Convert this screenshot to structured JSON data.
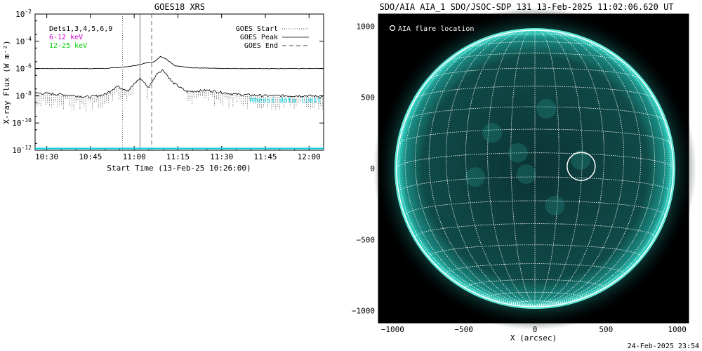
{
  "footer_timestamp": "24-Feb-2025 23:54",
  "colors": {
    "panel_bg": "#ffffff",
    "dets": "#000000",
    "band_6_12": "#cc00cc",
    "band_12_25": "#00cc00",
    "rhessi_line": "#00d4e6",
    "aia_disk": "#0a3a3a",
    "aia_limb": "#1fd6c6",
    "grid": "#ffffff"
  },
  "chart_data": [
    {
      "type": "line",
      "title": "GOES18 XRS",
      "xlabel": "Start Time (13-Feb-25 10:26:00)",
      "ylabel": "X-ray Flux (W m⁻²)",
      "yscale": "log",
      "ylim_exp": [
        -12,
        -2
      ],
      "y_tick_exponents": [
        -2,
        -4,
        -6,
        -8,
        -10,
        -12
      ],
      "xlim_minutes": [
        10.4333,
        12.0833
      ],
      "x_ticks": [
        "10:30",
        "10:45",
        "11:00",
        "11:15",
        "11:30",
        "11:45",
        "12:00"
      ],
      "legend_left": [
        {
          "label": "Dets1,3,4,5,6,9",
          "color": "#000000"
        },
        {
          "label": "6-12 keV",
          "color": "#cc00cc"
        },
        {
          "label": "12-25 keV",
          "color": "#00cc00"
        }
      ],
      "legend_right": [
        {
          "label": "GOES Start",
          "style": "dotted"
        },
        {
          "label": "GOES Peak",
          "style": "solid"
        },
        {
          "label": "GOES End",
          "style": "dashed"
        }
      ],
      "event_lines": {
        "start": "10:56",
        "peak": "11:02",
        "end": "11:06"
      },
      "series": [
        {
          "name": "long",
          "times": [
            "10:26",
            "10:40",
            "10:50",
            "10:56",
            "11:00",
            "11:04",
            "11:07",
            "11:09",
            "11:11",
            "11:14",
            "11:20",
            "11:30",
            "11:45",
            "12:06"
          ],
          "exp": [
            -6.0,
            -6.0,
            -6.0,
            -5.9,
            -5.8,
            -5.6,
            -5.5,
            -5.1,
            -5.3,
            -5.8,
            -5.95,
            -6.0,
            -6.0,
            -6.0
          ]
        },
        {
          "name": "short",
          "times": [
            "10:26",
            "10:35",
            "10:45",
            "10:50",
            "10:54",
            "10:58",
            "11:02",
            "11:05",
            "11:08",
            "11:10",
            "11:13",
            "11:18",
            "11:25",
            "11:35",
            "11:45",
            "12:00",
            "12:06"
          ],
          "exp": [
            -7.8,
            -7.9,
            -8.1,
            -7.9,
            -7.3,
            -7.6,
            -6.7,
            -7.4,
            -6.3,
            -6.1,
            -7.0,
            -7.7,
            -7.6,
            -7.9,
            -8.0,
            -8.0,
            -8.1
          ]
        }
      ],
      "baseline_label": "Rhessi data limit"
    },
    {
      "type": "map",
      "title": "SDO/AIA AIA_1 SDO/JSOC-SDP 131 13-Feb-2025 11:02:06.620 UT",
      "xlabel": "X (arcsec)",
      "legend": "AIA flare location",
      "x_ticks": [
        -1000,
        -500,
        0,
        500,
        1000
      ],
      "y_ticks": [
        1000,
        500,
        0,
        -500,
        -1000
      ],
      "solar_radius_arcsec": 972,
      "flare_location_arcsec": [
        325,
        15
      ]
    }
  ]
}
